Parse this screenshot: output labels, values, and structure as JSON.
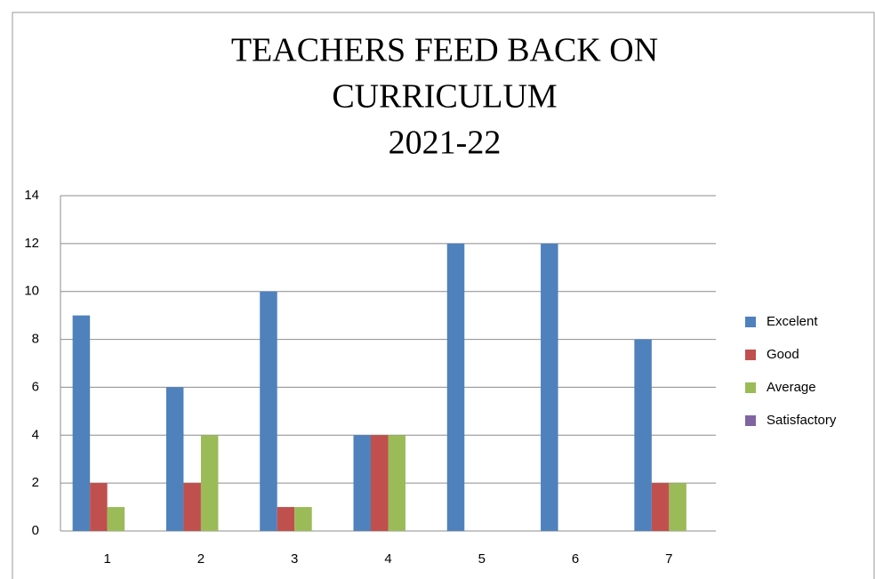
{
  "chart_data": {
    "type": "bar",
    "title": [
      "TEACHERS FEED BACK ON",
      "CURRICULUM",
      "2021-22"
    ],
    "categories": [
      "1",
      "2",
      "3",
      "4",
      "5",
      "6",
      "7"
    ],
    "series": [
      {
        "name": "Excelent",
        "color": "#4f81bd",
        "values": [
          9,
          6,
          10,
          4,
          12,
          12,
          8
        ]
      },
      {
        "name": "Good",
        "color": "#c0504d",
        "values": [
          2,
          2,
          1,
          4,
          0,
          0,
          2
        ]
      },
      {
        "name": "Average",
        "color": "#9bbb59",
        "values": [
          1,
          4,
          1,
          4,
          0,
          0,
          2
        ]
      },
      {
        "name": "Satisfactory",
        "color": "#8064a2",
        "values": [
          0,
          0,
          0,
          0,
          0,
          0,
          0
        ]
      }
    ],
    "ylim": [
      0,
      14
    ],
    "yticks": [
      0,
      2,
      4,
      6,
      8,
      10,
      12,
      14
    ],
    "grid": true,
    "legend": "right"
  }
}
